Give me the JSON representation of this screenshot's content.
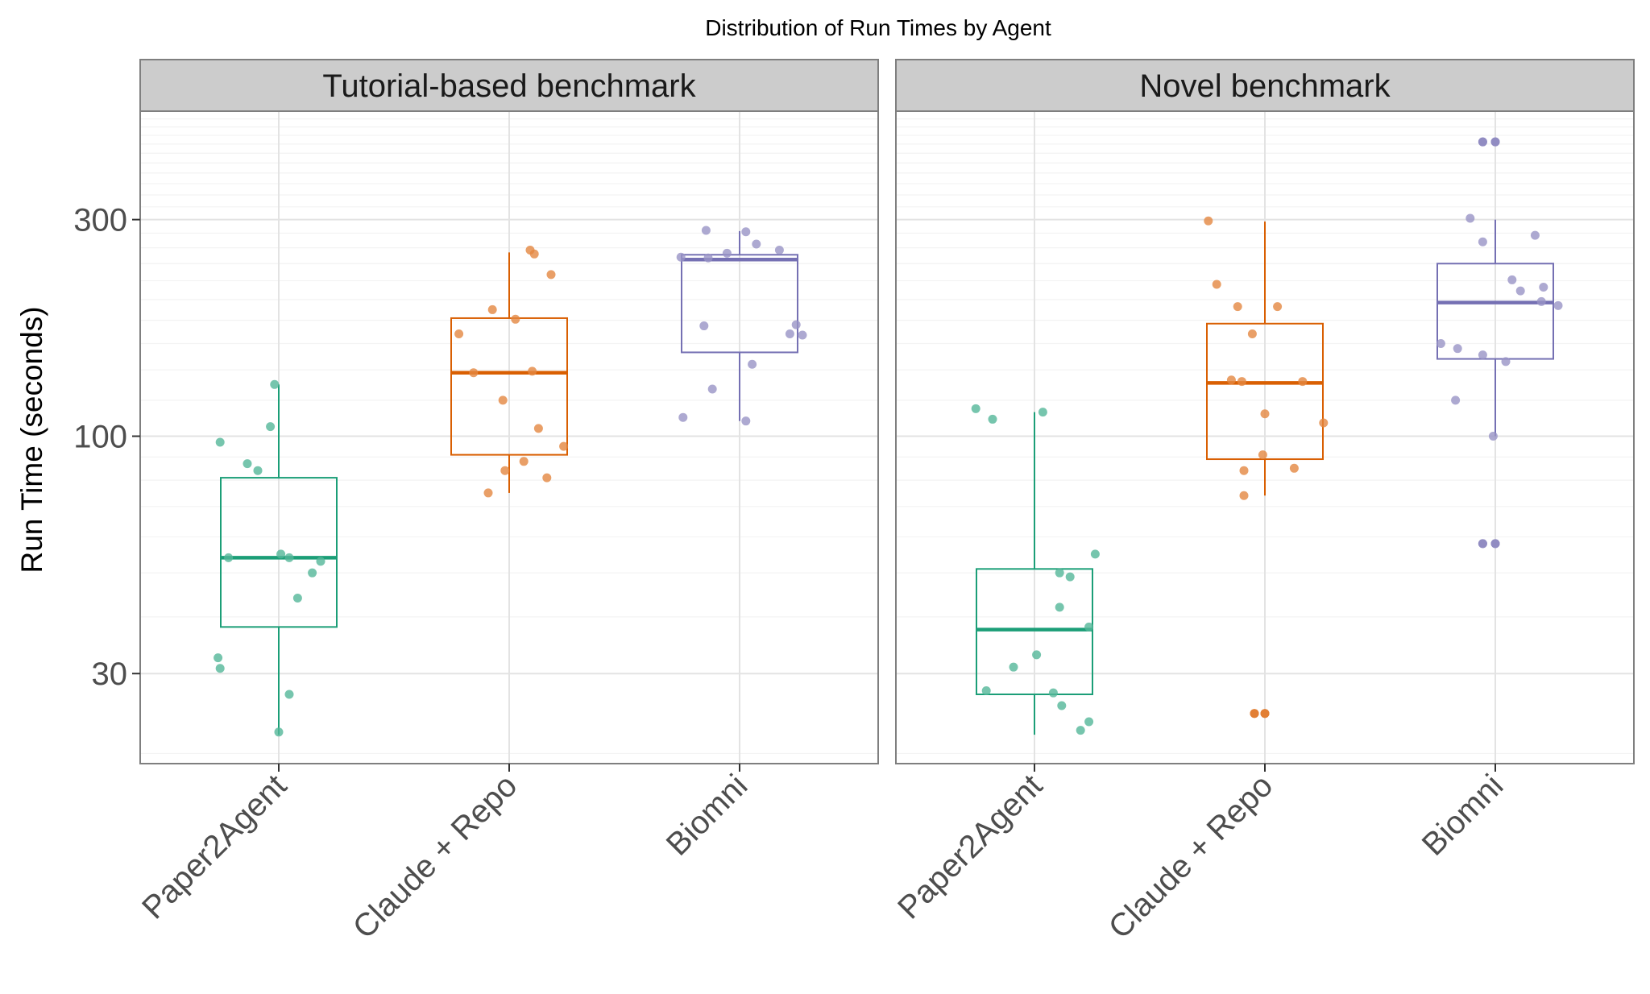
{
  "chart_data": {
    "type": "box",
    "title": "Distribution of Run Times by Agent",
    "ylabel": "Run Time (seconds)",
    "xlabel": "",
    "y_scale": "log",
    "ylim": [
      19,
      520
    ],
    "y_ticks": [
      30,
      100,
      300
    ],
    "grid": true,
    "legend": "none",
    "categories": [
      "Paper2Agent",
      "Claude + Repo",
      "Biomni"
    ],
    "colors": {
      "Paper2Agent": "#1b9e77",
      "Claude + Repo": "#d95f02",
      "Biomni": "#7570b3"
    },
    "panels": [
      {
        "name": "Tutorial-based benchmark",
        "boxes": [
          {
            "category": "Paper2Agent",
            "min": 22,
            "q1": 38,
            "median": 54,
            "q3": 81,
            "max": 130,
            "points": [
              [
                -0.28,
                97
              ],
              [
                -0.15,
                87
              ],
              [
                -0.1,
                84
              ],
              [
                0.05,
                54
              ],
              [
                -0.04,
                105
              ],
              [
                -0.24,
                54
              ],
              [
                0.01,
                55
              ],
              [
                0.16,
                50
              ],
              [
                0.2,
                53
              ],
              [
                0.09,
                44
              ],
              [
                -0.29,
                32.5
              ],
              [
                -0.28,
                30.8
              ],
              [
                0.05,
                27
              ],
              [
                0.0,
                22.3
              ],
              [
                -0.02,
                130
              ]
            ]
          },
          {
            "category": "Claude + Repo",
            "min": 75,
            "q1": 91,
            "median": 138,
            "q3": 182,
            "max": 254,
            "points": [
              [
                -0.24,
                168
              ],
              [
                -0.17,
                138
              ],
              [
                -0.08,
                190
              ],
              [
                0.03,
                181
              ],
              [
                0.1,
                257
              ],
              [
                0.12,
                252
              ],
              [
                0.2,
                227
              ],
              [
                0.11,
                139
              ],
              [
                0.14,
                104
              ],
              [
                0.26,
                95
              ],
              [
                -0.03,
                120
              ],
              [
                -0.02,
                84
              ],
              [
                0.07,
                88
              ],
              [
                0.18,
                81
              ],
              [
                -0.1,
                75
              ]
            ]
          },
          {
            "category": "Biomni",
            "min": 108,
            "q1": 153,
            "median": 245,
            "q3": 251,
            "max": 283,
            "points": [
              [
                -0.28,
                248
              ],
              [
                -0.15,
                247
              ],
              [
                -0.17,
                175
              ],
              [
                -0.16,
                284
              ],
              [
                -0.06,
                253
              ],
              [
                0.03,
                282
              ],
              [
                0.08,
                265
              ],
              [
                0.19,
                257
              ],
              [
                0.27,
                176
              ],
              [
                0.3,
                167
              ],
              [
                0.06,
                144
              ],
              [
                0.03,
                108
              ],
              [
                -0.13,
                127
              ],
              [
                -0.27,
                110
              ],
              [
                0.24,
                168
              ]
            ]
          }
        ]
      },
      {
        "name": "Novel benchmark",
        "boxes": [
          {
            "category": "Paper2Agent",
            "min": 22,
            "q1": 27,
            "median": 37.5,
            "q3": 51,
            "max": 113,
            "points": [
              [
                -0.28,
                115
              ],
              [
                -0.2,
                109
              ],
              [
                0.04,
                113
              ],
              [
                -0.1,
                31
              ],
              [
                -0.23,
                27.5
              ],
              [
                0.01,
                33
              ],
              [
                0.12,
                42
              ],
              [
                0.12,
                50
              ],
              [
                0.17,
                49
              ],
              [
                0.26,
                38
              ],
              [
                0.29,
                55
              ],
              [
                0.09,
                27.2
              ],
              [
                0.13,
                25.5
              ],
              [
                0.22,
                22.5
              ],
              [
                0.26,
                23.5
              ]
            ]
          },
          {
            "category": "Claude + Repo",
            "min": 74,
            "q1": 89,
            "median": 131,
            "q3": 177,
            "max": 297,
            "points": [
              [
                -0.27,
                298
              ],
              [
                -0.23,
                216
              ],
              [
                -0.13,
                193
              ],
              [
                -0.06,
                168
              ],
              [
                0.06,
                193
              ],
              [
                -0.16,
                133
              ],
              [
                -0.11,
                132
              ],
              [
                0.18,
                132
              ],
              [
                0.28,
                107
              ],
              [
                0.0,
                112
              ],
              [
                -0.01,
                91
              ],
              [
                -0.1,
                84
              ],
              [
                0.14,
                85
              ],
              [
                -0.1,
                74
              ],
              [
                -0.05,
                24.5
              ],
              [
                0.0,
                24.5
              ]
            ]
          },
          {
            "category": "Biomni",
            "min": 100,
            "q1": 148,
            "median": 197,
            "q3": 240,
            "max": 300,
            "points": [
              [
                -0.12,
                302
              ],
              [
                -0.06,
                268
              ],
              [
                0.19,
                277
              ],
              [
                -0.18,
                156
              ],
              [
                -0.06,
                151
              ],
              [
                0.05,
                146
              ],
              [
                0.08,
                221
              ],
              [
                0.12,
                209
              ],
              [
                0.23,
                213
              ],
              [
                0.22,
                198
              ],
              [
                0.3,
                194
              ],
              [
                -0.26,
                160
              ],
              [
                -0.19,
                120
              ],
              [
                -0.06,
                445
              ],
              [
                0.0,
                445
              ],
              [
                -0.06,
                58
              ],
              [
                0.0,
                58
              ],
              [
                -0.01,
                100
              ]
            ]
          }
        ]
      }
    ]
  }
}
